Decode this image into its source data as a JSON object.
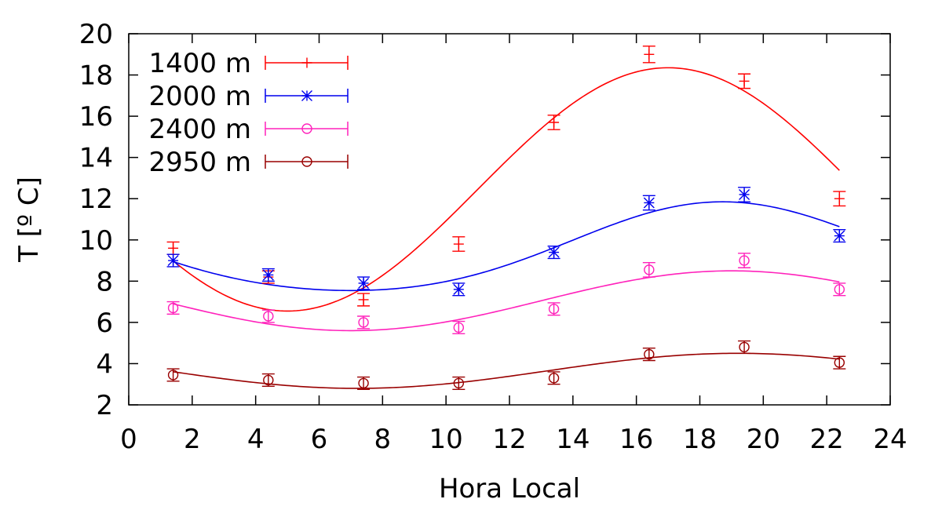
{
  "chart_data": {
    "type": "scatter",
    "xlabel": "Hora Local",
    "ylabel": "T [º C]",
    "xlim": [
      0,
      24
    ],
    "ylim": [
      2,
      20
    ],
    "xticks": [
      0,
      2,
      4,
      6,
      8,
      10,
      12,
      14,
      16,
      18,
      20,
      22,
      24
    ],
    "yticks": [
      2,
      4,
      6,
      8,
      10,
      12,
      14,
      16,
      18,
      20
    ],
    "grid": false,
    "legend_position": "top-left",
    "x": [
      1.4,
      4.4,
      7.4,
      10.4,
      13.4,
      16.4,
      19.4,
      22.4
    ],
    "series": [
      {
        "name": "1400 m",
        "color": "#ff0000",
        "marker": "plus",
        "values": [
          9.6,
          8.2,
          7.1,
          9.8,
          15.7,
          19.0,
          17.7,
          12.0
        ],
        "errors": [
          0.3,
          0.3,
          0.3,
          0.35,
          0.35,
          0.4,
          0.35,
          0.35
        ],
        "fit": {
          "amplitude": 5.9,
          "mean": 12.45,
          "peak_hour": 17.0
        }
      },
      {
        "name": "2000 m",
        "color": "#0000ee",
        "marker": "star",
        "values": [
          9.0,
          8.3,
          7.9,
          7.6,
          9.4,
          11.8,
          12.2,
          10.2
        ],
        "errors": [
          0.3,
          0.3,
          0.3,
          0.3,
          0.3,
          0.35,
          0.35,
          0.3
        ],
        "fit": {
          "amplitude": 2.15,
          "mean": 9.48,
          "peak_hour": 18.8,
          "h2_amplitude": 0.22,
          "h2_phase_hour": 6.5
        }
      },
      {
        "name": "2400 m",
        "color": "#ff22bb",
        "marker": "circle",
        "values": [
          6.7,
          6.3,
          6.0,
          5.75,
          6.65,
          8.55,
          9.0,
          7.6
        ],
        "errors": [
          0.3,
          0.3,
          0.3,
          0.3,
          0.3,
          0.35,
          0.35,
          0.3
        ],
        "fit": {
          "amplitude": 1.45,
          "mean": 7.05,
          "peak_hour": 19.0
        }
      },
      {
        "name": "2950 m",
        "color": "#990000",
        "marker": "circle",
        "values": [
          3.45,
          3.2,
          3.05,
          3.05,
          3.3,
          4.45,
          4.8,
          4.05
        ],
        "errors": [
          0.3,
          0.3,
          0.3,
          0.3,
          0.3,
          0.3,
          0.3,
          0.3
        ],
        "fit": {
          "amplitude": 0.85,
          "mean": 3.65,
          "peak_hour": 19.2
        }
      }
    ]
  }
}
